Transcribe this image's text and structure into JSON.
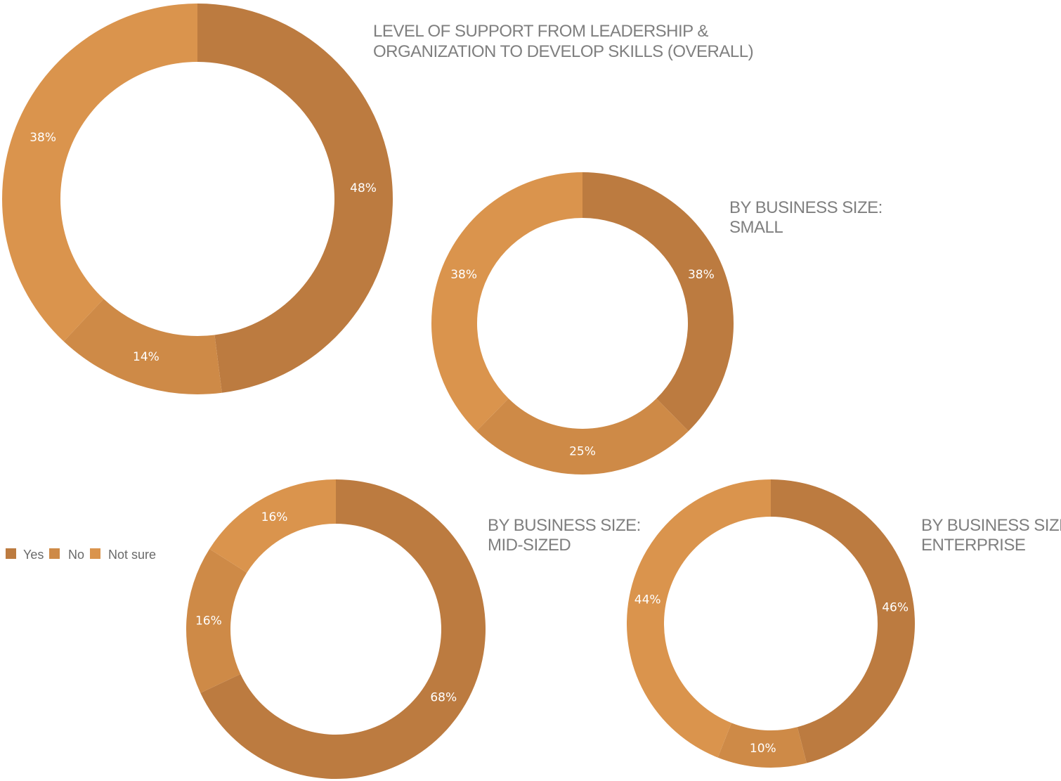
{
  "legend": {
    "items": [
      {
        "label": "Yes",
        "color": "#bc7b40"
      },
      {
        "label": "No",
        "color": "#ce8a47"
      },
      {
        "label": "Not sure",
        "color": "#da944d"
      }
    ]
  },
  "chart_data": [
    {
      "type": "pie",
      "style": "donut",
      "title_lines": [
        "LEVEL OF SUPPORT FROM LEADERSHIP  &",
        "ORGANIZATION TO DEVELOP SKILLS (OVERALL)"
      ],
      "categories": [
        "Yes",
        "No",
        "Not sure"
      ],
      "values": [
        48,
        14,
        38
      ],
      "value_labels": [
        "48%",
        "14%",
        "38%"
      ],
      "legend_placement": "left"
    },
    {
      "type": "pie",
      "style": "donut",
      "title_lines": [
        "BY BUSINESS SIZE:",
        "SMALL"
      ],
      "categories": [
        "Yes",
        "No",
        "Not sure"
      ],
      "values": [
        38,
        25,
        38
      ],
      "value_labels": [
        "38%",
        "25%",
        "38%"
      ]
    },
    {
      "type": "pie",
      "style": "donut",
      "title_lines": [
        "BY BUSINESS SIZE:",
        "MID-SIZED"
      ],
      "categories": [
        "Yes",
        "No",
        "Not sure"
      ],
      "values": [
        68,
        16,
        16
      ],
      "value_labels": [
        "68%",
        "16%",
        "16%"
      ]
    },
    {
      "type": "pie",
      "style": "donut",
      "title_lines": [
        "BY BUSINESS SIZE:",
        "ENTERPRISE"
      ],
      "categories": [
        "Yes",
        "No",
        "Not sure"
      ],
      "values": [
        46,
        10,
        44
      ],
      "value_labels": [
        "46%",
        "10%",
        "44%"
      ]
    }
  ]
}
